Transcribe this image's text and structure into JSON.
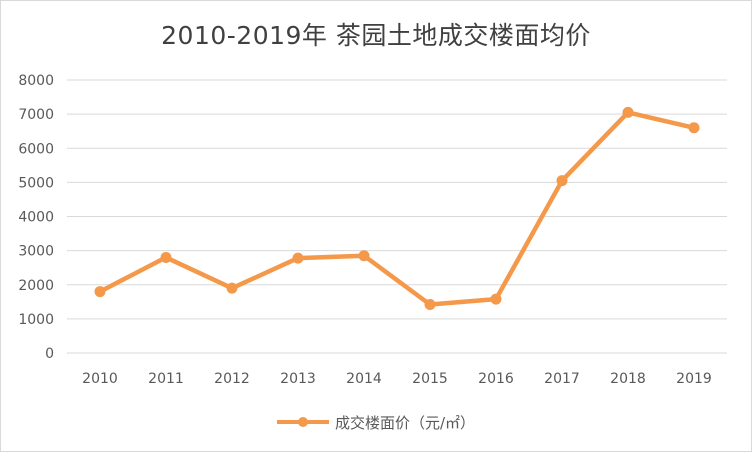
{
  "chart_data": {
    "type": "line",
    "title": "2010-2019年 茶园土地成交楼面均价",
    "xlabel": "",
    "ylabel": "",
    "categories": [
      "2010",
      "2011",
      "2012",
      "2013",
      "2014",
      "2015",
      "2016",
      "2017",
      "2018",
      "2019"
    ],
    "series": [
      {
        "name": "成交楼面价（元/㎡）",
        "values": [
          1800,
          2800,
          1900,
          2780,
          2850,
          1420,
          1580,
          5050,
          7050,
          6600
        ]
      }
    ],
    "ylim": [
      0,
      8000
    ],
    "yticks": [
      "0",
      "1000",
      "2000",
      "3000",
      "4000",
      "5000",
      "6000",
      "7000",
      "8000"
    ],
    "grid": true,
    "legend_position": "bottom"
  },
  "colors": {
    "series": "#f4984a",
    "grid": "#d9d9d9",
    "axis_text": "#595959",
    "title_text": "#404040"
  }
}
